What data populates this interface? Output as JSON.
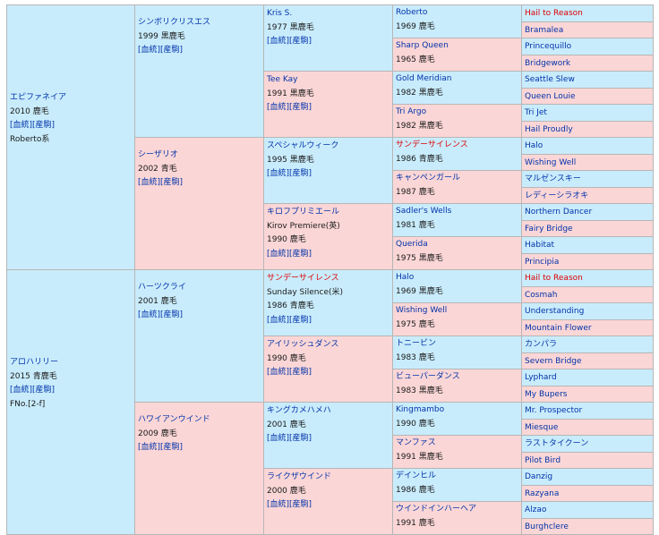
{
  "labels": {
    "bloodline": "[血統]",
    "race_record": "[産駒]"
  },
  "horse1": {
    "name": "エピファネイア",
    "year": "2010 鹿毛",
    "line": "Roberto系"
  },
  "horse2": {
    "name": "アロハリリー",
    "year": "2015 青鹿毛",
    "family": "FNo.[2-f]"
  },
  "sires": {
    "a": {
      "name": "シンボリクリスエス",
      "year": "1999 黒鹿毛"
    },
    "b": {
      "name": "シーザリオ",
      "year": "2002 青毛"
    },
    "c": {
      "name": "ハーツクライ",
      "year": "2001 鹿毛"
    },
    "d": {
      "name": "ハワイアンウインド",
      "year": "2009 鹿毛"
    }
  },
  "g3": {
    "a": {
      "name": "Kris S.",
      "year": "1977 黒鹿毛"
    },
    "b": {
      "name": "Tee Kay",
      "year": "1991 黒鹿毛"
    },
    "c": {
      "name": "スペシャルウィーク",
      "year": "1995 黒鹿毛"
    },
    "d": {
      "name": "キロフプリミエール",
      "alt": "Kirov Premiere(英)",
      "year": "1990 鹿毛"
    },
    "e": {
      "name": "サンデーサイレンス",
      "alt": "Sunday Silence(米)",
      "year": "1986 青鹿毛"
    },
    "f": {
      "name": "アイリッシュダンス",
      "year": "1990 鹿毛"
    },
    "g": {
      "name": "キングカメハメハ",
      "year": "2001 鹿毛"
    },
    "h": {
      "name": "ライクザウインド",
      "year": "2000 鹿毛"
    }
  },
  "g4": [
    {
      "name": "Roberto",
      "year": "1969 鹿毛"
    },
    {
      "name": "Sharp Queen",
      "year": "1965 鹿毛"
    },
    {
      "name": "Gold Meridian",
      "year": "1982 黒鹿毛"
    },
    {
      "name": "Tri Argo",
      "year": "1982 黒鹿毛"
    },
    {
      "name": "サンデーサイレンス",
      "year": "1986 青鹿毛"
    },
    {
      "name": "キャンペンガール",
      "year": "1987 鹿毛"
    },
    {
      "name": "Sadler's Wells",
      "year": "1981 鹿毛"
    },
    {
      "name": "Querida",
      "year": "1975 黒鹿毛"
    },
    {
      "name": "Halo",
      "year": "1969 黒鹿毛"
    },
    {
      "name": "Wishing Well",
      "year": "1975 鹿毛"
    },
    {
      "name": "トニービン",
      "year": "1983 鹿毛"
    },
    {
      "name": "ビューパーダンス",
      "year": "1983 黒鹿毛"
    },
    {
      "name": "Kingmambo",
      "year": "1990 鹿毛"
    },
    {
      "name": "マンファス",
      "year": "1991 黒鹿毛"
    },
    {
      "name": "デインヒル",
      "year": "1986 鹿毛"
    },
    {
      "name": "ウインドインハーヘア",
      "year": "1991 鹿毛"
    }
  ],
  "g5": [
    "Hail to Reason",
    "Bramalea",
    "Princequillo",
    "Bridgework",
    "Seattle Slew",
    "Queen Louie",
    "Tri Jet",
    "Hail Proudly",
    "Halo",
    "Wishing Well",
    "マルゼンスキー",
    "レディーシラオキ",
    "Northern Dancer",
    "Fairy Bridge",
    "Habitat",
    "Principia",
    "Hail to Reason",
    "Cosmah",
    "Understanding",
    "Mountain Flower",
    "カンパラ",
    "Severn Bridge",
    "Lyphard",
    "My Bupers",
    "Mr. Prospector",
    "Miesque",
    "ラストタイクーン",
    "Pilot Bird",
    "Danzig",
    "Razyana",
    "Alzao",
    "Burghclere"
  ]
}
